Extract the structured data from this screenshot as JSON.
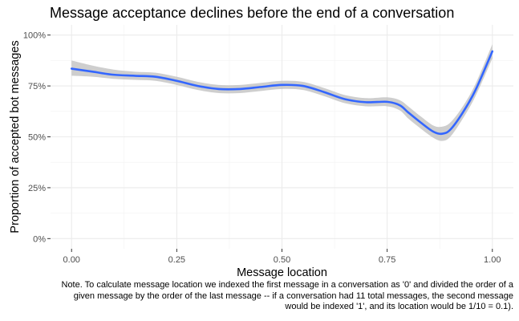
{
  "chart_data": {
    "type": "line",
    "title": "Message acceptance declines before the end of a conversation",
    "xlabel": "Message location",
    "ylabel": "Proportion of accepted bot messages",
    "xlim": [
      -0.05,
      1.05
    ],
    "ylim": [
      -0.05,
      1.05
    ],
    "x_ticks": [
      0,
      0.25,
      0.5,
      0.75,
      1
    ],
    "x_tick_labels": [
      "0.00",
      "0.25",
      "0.50",
      "0.75",
      "1.00"
    ],
    "y_ticks": [
      0,
      0.25,
      0.5,
      0.75,
      1
    ],
    "y_tick_labels": [
      "0%",
      "25%",
      "50%",
      "75%",
      "100%"
    ],
    "grid": true,
    "series": [
      {
        "line_color": "#3366ff",
        "band_color": "#bebebe",
        "x": [
          0.0,
          0.05,
          0.1,
          0.15,
          0.2,
          0.25,
          0.3,
          0.35,
          0.4,
          0.45,
          0.5,
          0.55,
          0.6,
          0.65,
          0.7,
          0.75,
          0.78,
          0.8,
          0.83,
          0.86,
          0.88,
          0.9,
          0.93,
          0.96,
          1.0
        ],
        "y": [
          0.835,
          0.82,
          0.805,
          0.8,
          0.795,
          0.775,
          0.75,
          0.735,
          0.735,
          0.745,
          0.755,
          0.75,
          0.72,
          0.685,
          0.67,
          0.672,
          0.655,
          0.62,
          0.57,
          0.525,
          0.515,
          0.535,
          0.62,
          0.73,
          0.92
        ],
        "lower": [
          0.8,
          0.795,
          0.785,
          0.78,
          0.775,
          0.755,
          0.73,
          0.715,
          0.715,
          0.725,
          0.735,
          0.73,
          0.7,
          0.665,
          0.65,
          0.65,
          0.63,
          0.59,
          0.54,
          0.495,
          0.48,
          0.5,
          0.59,
          0.7,
          0.885
        ],
        "upper": [
          0.875,
          0.85,
          0.83,
          0.82,
          0.815,
          0.795,
          0.77,
          0.755,
          0.755,
          0.765,
          0.775,
          0.77,
          0.74,
          0.705,
          0.69,
          0.694,
          0.68,
          0.65,
          0.6,
          0.555,
          0.55,
          0.57,
          0.65,
          0.76,
          0.955
        ]
      }
    ],
    "note": "Note. To calculate message location we indexed the first message in a conversation as '0' and divided the order of a given message by the order of the last message -- if a conversation had 11 total messages, the second message would be indexed '1', and its location would be 1/10 = 0.1)."
  }
}
